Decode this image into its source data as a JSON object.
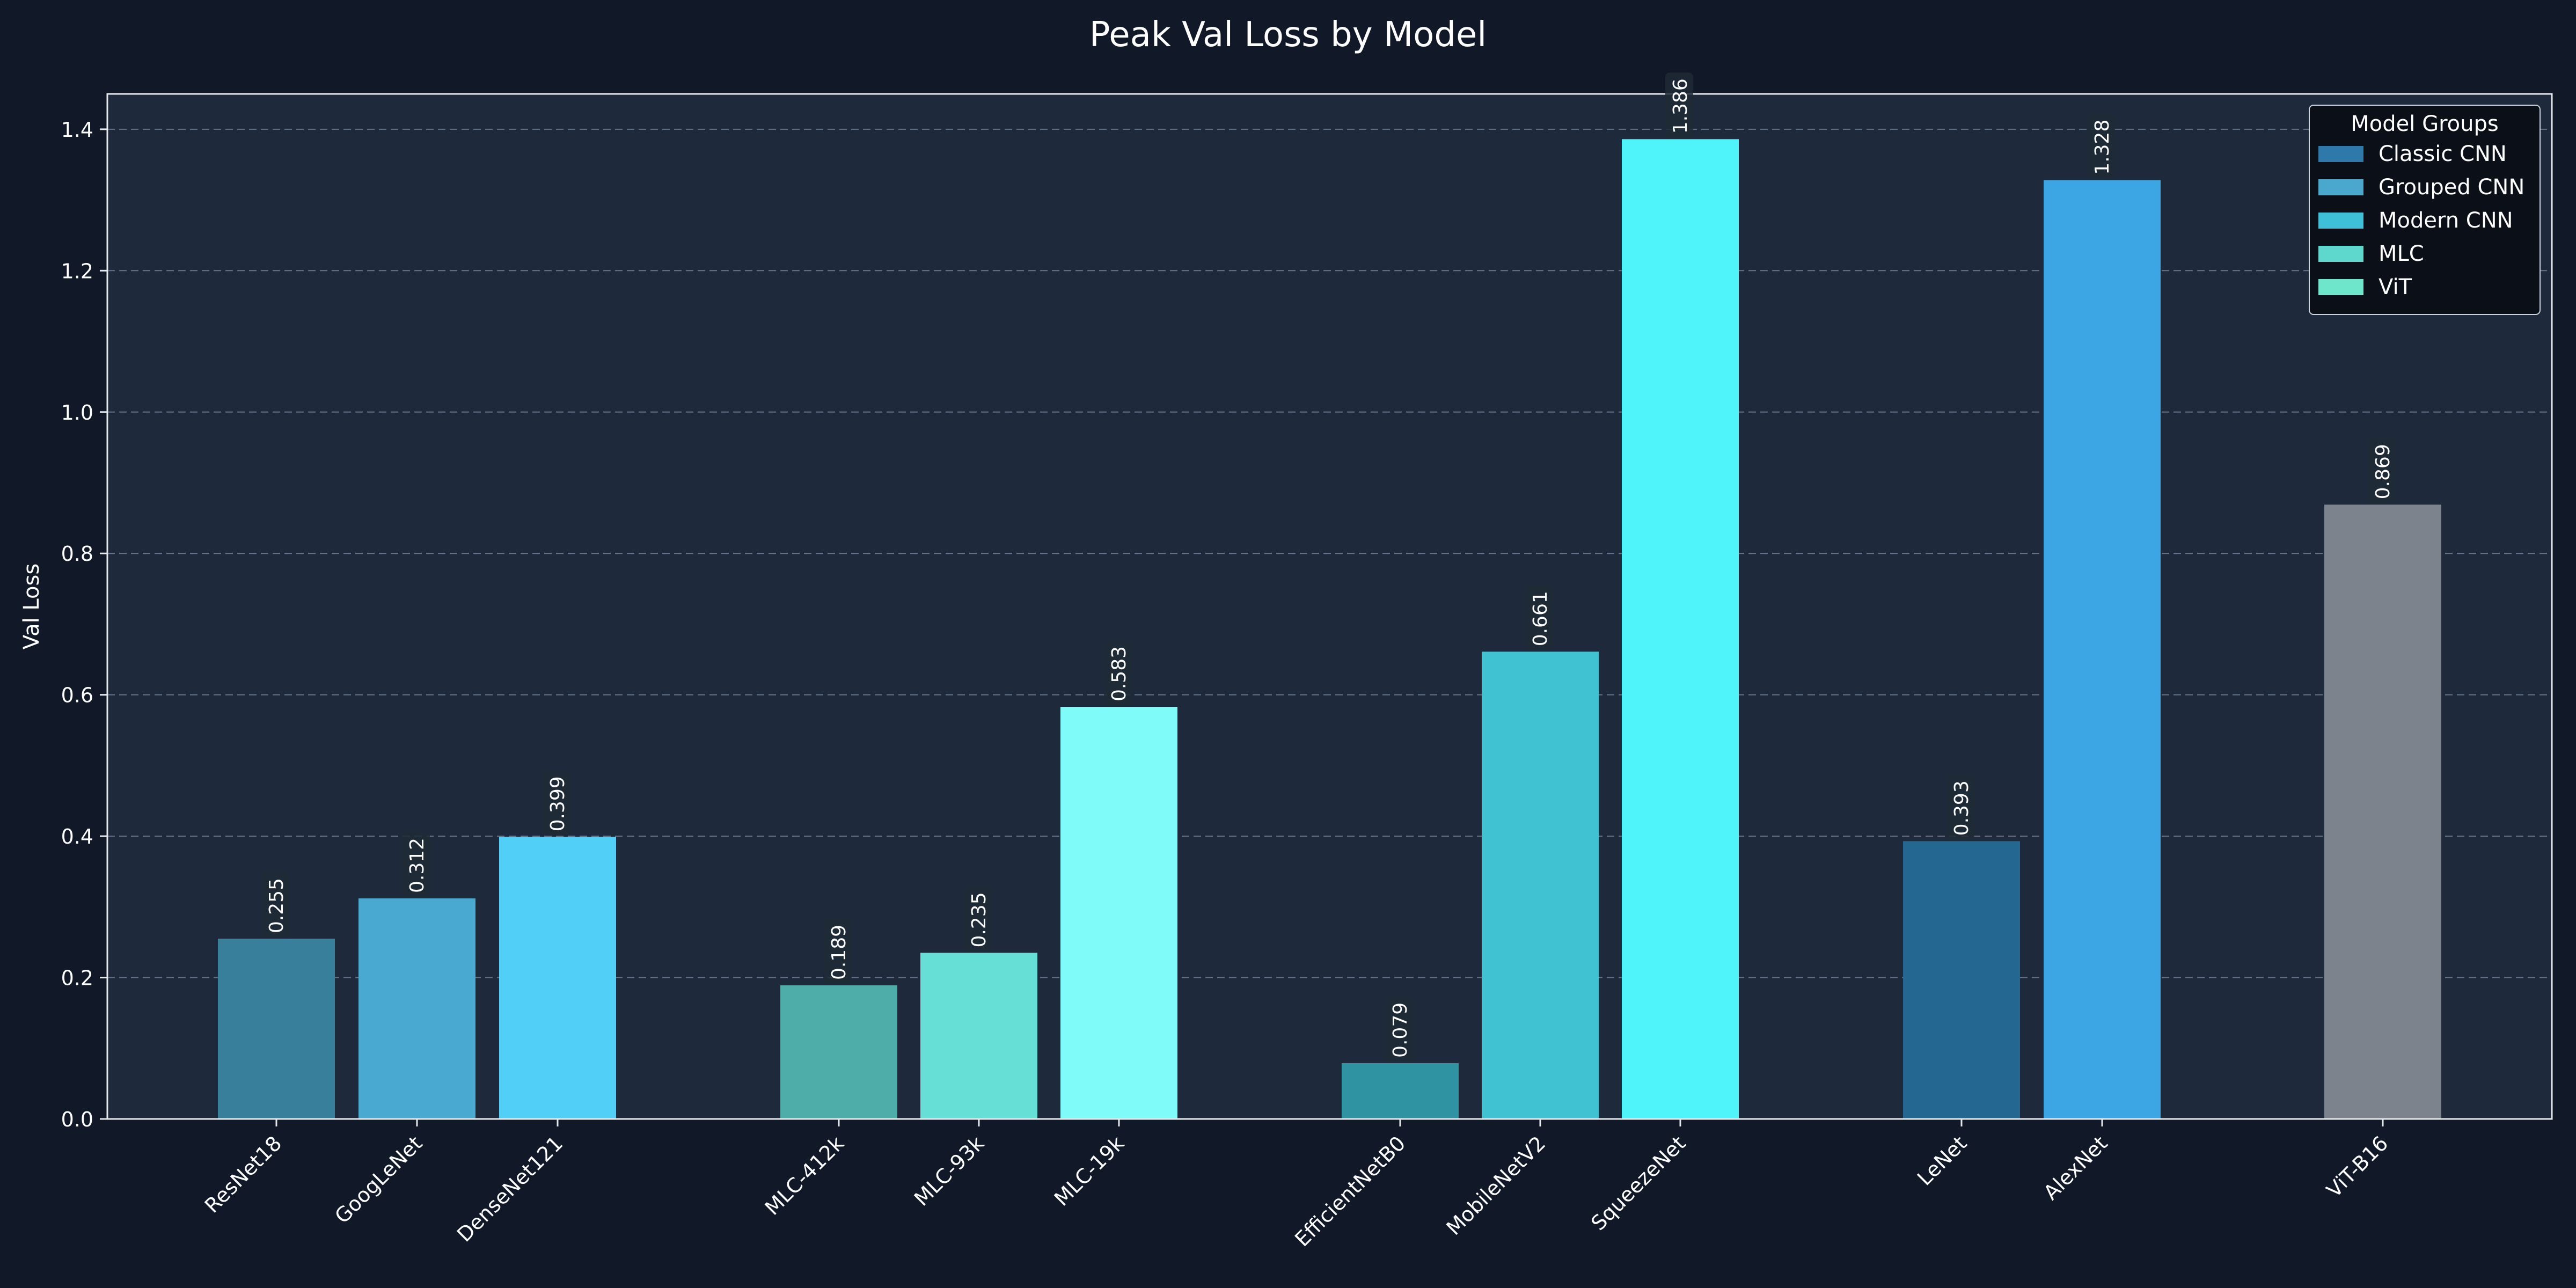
{
  "chart_data": {
    "type": "bar",
    "title": "Peak Val Loss by Model",
    "xlabel": "",
    "ylabel": "Val Loss",
    "ylim": [
      0,
      1.45
    ],
    "yticks": [
      "0.0",
      "0.2",
      "0.4",
      "0.6",
      "0.8",
      "1.0",
      "1.2",
      "1.4"
    ],
    "grid": true,
    "legend": {
      "title": "Model Groups",
      "placement": "top-right",
      "entries": [
        {
          "name": "Classic CNN",
          "color": "#2e78aa"
        },
        {
          "name": "Grouped CNN",
          "color": "#4aa8cc"
        },
        {
          "name": "Modern CNN",
          "color": "#3ec0d8"
        },
        {
          "name": "MLC",
          "color": "#5ed8cc"
        },
        {
          "name": "ViT",
          "color": "#6ee6cc"
        }
      ]
    },
    "categories": [
      "ResNet18",
      "GoogLeNet",
      "DenseNet121",
      "MLC-412k",
      "MLC-93k",
      "MLC-19k",
      "EfficientNetB0",
      "MobileNetV2",
      "SqueezeNet",
      "LeNet",
      "AlexNet",
      "ViT-B16"
    ],
    "values": [
      0.255,
      0.312,
      0.399,
      0.189,
      0.235,
      0.583,
      0.079,
      0.661,
      1.386,
      0.393,
      1.328,
      0.869
    ],
    "value_labels": [
      "0.255",
      "0.312",
      "0.399",
      "0.189",
      "0.235",
      "0.583",
      "0.079",
      "0.661",
      "1.386",
      "0.393",
      "1.328",
      "0.869"
    ],
    "bar_colors": [
      "#377f9a",
      "#4aa9d0",
      "#52cff7",
      "#4fada9",
      "#66e0d6",
      "#7ffbfa",
      "#2f93a2",
      "#40c2d3",
      "#4ff4fa",
      "#246891",
      "#3ba6e3",
      "#7d838d"
    ],
    "colors": {
      "background": "#111827",
      "plot_background": "#1e293b",
      "text": "#ffffff",
      "grid": "#64748b",
      "legend_background": "#0b0f17"
    }
  }
}
